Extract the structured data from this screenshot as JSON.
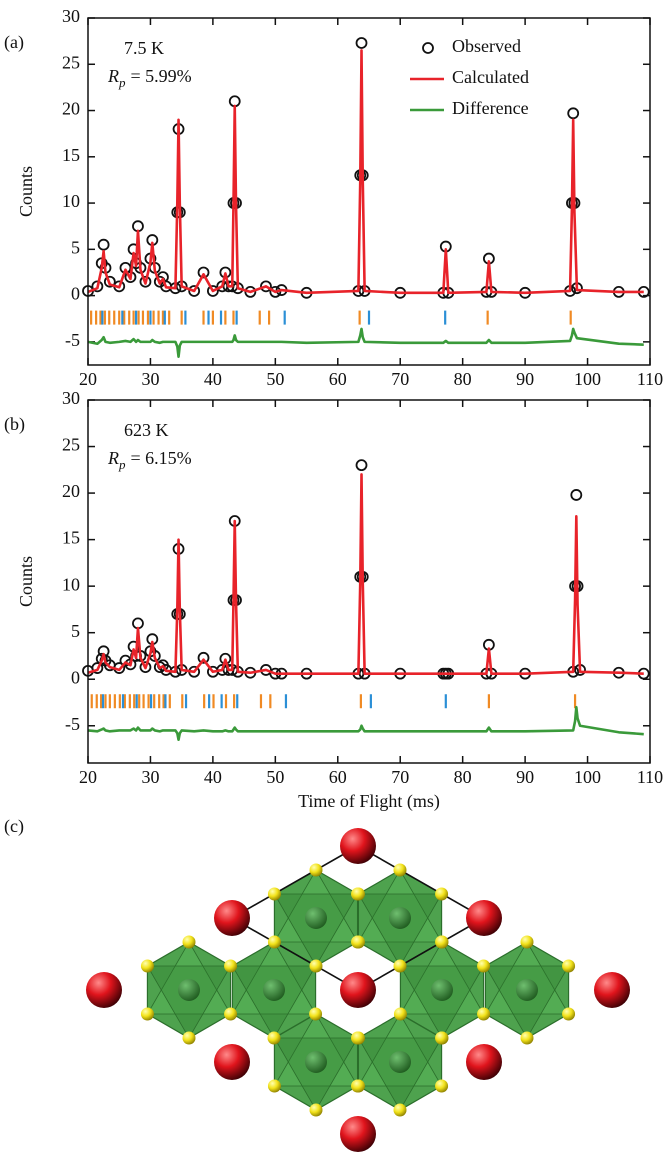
{
  "chart_data": [
    {
      "type": "line",
      "panel_label": "(a)",
      "temperature": "7.5 K",
      "rp_symbol": "R",
      "rp_subscript": "p",
      "rp_value": "= 5.99%",
      "ylabel": "Counts",
      "legend": "upper right",
      "xlim": [
        20,
        110
      ],
      "xticks": [
        20,
        30,
        40,
        50,
        60,
        70,
        80,
        90,
        100,
        110
      ],
      "ylim": [
        -7.5,
        30
      ],
      "yticks": [
        -5,
        0,
        5,
        10,
        15,
        20,
        25,
        30
      ],
      "x": [
        20,
        21.5,
        22.2,
        22.5,
        22.8,
        23.5,
        25,
        26,
        26.8,
        27.3,
        27.7,
        28,
        28.4,
        29.2,
        30,
        30.3,
        30.7,
        31.5,
        32,
        32.5,
        34,
        34.3,
        34.5,
        34.7,
        35,
        37,
        38.5,
        40,
        41.5,
        42,
        42.5,
        43.1,
        43.3,
        43.5,
        43.7,
        44,
        46,
        48.5,
        50,
        51,
        55,
        63.3,
        63.6,
        63.8,
        64,
        64.3,
        70,
        76.9,
        77.3,
        77.7,
        83.8,
        84.2,
        84.6,
        90,
        97.2,
        97.5,
        97.7,
        97.9,
        98.3,
        105,
        109
      ],
      "series": [
        {
          "name": "Observed",
          "style": "markers",
          "color": "#111111",
          "values": [
            0.5,
            1,
            3.5,
            5.5,
            3,
            1.5,
            1,
            3,
            2,
            5,
            3.5,
            7.5,
            3,
            1.5,
            4,
            6,
            3,
            1.5,
            2,
            1,
            0.8,
            9,
            18,
            9,
            1,
            0.5,
            2.5,
            0.5,
            1,
            2.5,
            1,
            1,
            10,
            21,
            10,
            0.8,
            0.4,
            1,
            0.4,
            0.6,
            0.3,
            0.5,
            13,
            27.3,
            13,
            0.5,
            0.3,
            0.3,
            5.3,
            0.3,
            0.4,
            4,
            0.4,
            0.3,
            0.5,
            10,
            19.7,
            10,
            0.8,
            0.4,
            0.4
          ]
        },
        {
          "name": "Calculated",
          "style": "line",
          "color": "#e8232a",
          "values": [
            0.4,
            0.8,
            3,
            4.8,
            2.5,
            1.2,
            0.9,
            2.8,
            1.8,
            4.6,
            3.2,
            7,
            2.8,
            1.3,
            3.6,
            5.7,
            2.7,
            1.3,
            1.8,
            0.9,
            0.8,
            10,
            19,
            10,
            1,
            0.5,
            2.3,
            0.5,
            1,
            2.4,
            1,
            1,
            10,
            20.5,
            10,
            0.8,
            0.4,
            1,
            0.4,
            0.6,
            0.3,
            0.5,
            12.5,
            26.5,
            12.5,
            0.5,
            0.3,
            0.3,
            5,
            0.3,
            0.4,
            3.7,
            0.4,
            0.3,
            0.5,
            9.5,
            19,
            9,
            0.6,
            0.4,
            0.4
          ]
        },
        {
          "name": "Difference",
          "style": "line",
          "color": "#3a9a3a",
          "values": [
            -5,
            -5.2,
            -4.8,
            -4.5,
            -5,
            -5.1,
            -5,
            -4.9,
            -5,
            -4.7,
            -5,
            -4.8,
            -5,
            -5,
            -5,
            -4.8,
            -5,
            -5.1,
            -5,
            -5,
            -5,
            -5.5,
            -6.6,
            -5.4,
            -5,
            -5,
            -5,
            -5,
            -5,
            -5,
            -5,
            -5,
            -4.8,
            -4.3,
            -4.8,
            -5,
            -5,
            -5,
            -5,
            -5,
            -5.1,
            -5,
            -4.3,
            -3.6,
            -4.5,
            -5,
            -5.1,
            -5.1,
            -4.9,
            -5.1,
            -5.1,
            -4.8,
            -5.1,
            -5.1,
            -4.9,
            -4.3,
            -3.6,
            -4,
            -4.6,
            -5.2,
            -5.3
          ]
        }
      ],
      "reflections": [
        {
          "color": "#f08a24",
          "positions": [
            20.5,
            21.3,
            22,
            22.7,
            23.4,
            24.2,
            25,
            25.8,
            26.6,
            27.3,
            28.1,
            28.8,
            29.6,
            30.5,
            31.3,
            32,
            33,
            35,
            38.5,
            40,
            42,
            43.3,
            47.5,
            49,
            63.5,
            84,
            97.3
          ]
        },
        {
          "color": "#2b8fd6",
          "positions": [
            22.3,
            25.5,
            27.7,
            30,
            32.3,
            35.6,
            39.3,
            41.3,
            43.8,
            51.5,
            65,
            77.2
          ]
        }
      ]
    },
    {
      "type": "line",
      "panel_label": "(b)",
      "temperature": "623 K",
      "rp_symbol": "R",
      "rp_subscript": "p",
      "rp_value": "= 6.15%",
      "ylabel": "Counts",
      "xlabel": "Time of Flight (ms)",
      "xlim": [
        20,
        110
      ],
      "xticks": [
        20,
        30,
        40,
        50,
        60,
        70,
        80,
        90,
        100,
        110
      ],
      "ylim": [
        -9,
        30
      ],
      "yticks": [
        -5,
        0,
        5,
        10,
        15,
        20,
        25,
        30
      ],
      "x": [
        20,
        21.5,
        22.2,
        22.5,
        22.8,
        23.5,
        25,
        26,
        26.8,
        27.3,
        27.7,
        28,
        28.4,
        29.2,
        30,
        30.3,
        30.7,
        31.5,
        32,
        32.5,
        34,
        34.3,
        34.5,
        34.7,
        35,
        37,
        38.5,
        40,
        41.5,
        42,
        42.5,
        43.1,
        43.3,
        43.5,
        43.7,
        44,
        46,
        48.5,
        50,
        51,
        55,
        63.3,
        63.6,
        63.8,
        64,
        64.3,
        70,
        76.9,
        77.3,
        77.7,
        83.8,
        84.2,
        84.6,
        90,
        97.7,
        98,
        98.2,
        98.4,
        98.8,
        105,
        109
      ],
      "series": [
        {
          "style": "markers",
          "color": "#111111",
          "values": [
            0.9,
            1.2,
            2.2,
            3,
            2,
            1.5,
            1.2,
            2,
            1.6,
            3.5,
            2.5,
            6,
            2.5,
            1.3,
            3,
            4.3,
            2.5,
            1.3,
            1.5,
            1,
            0.8,
            7,
            14,
            7,
            1,
            0.8,
            2.3,
            0.8,
            1,
            2.2,
            1,
            1,
            8.5,
            17,
            8.5,
            0.8,
            0.7,
            1,
            0.6,
            0.6,
            0.6,
            0.6,
            11,
            23,
            11,
            0.6,
            0.6,
            0.6,
            0.6,
            0.6,
            0.6,
            3.7,
            0.6,
            0.6,
            0.8,
            10,
            19.8,
            10,
            1,
            0.7,
            0.6
          ]
        },
        {
          "style": "line",
          "color": "#e8232a",
          "values": [
            0.7,
            1,
            2,
            2.7,
            1.8,
            1.3,
            1,
            1.8,
            1.5,
            3.2,
            2.3,
            5.5,
            2.3,
            1.2,
            2.8,
            4,
            2.3,
            1.2,
            1.4,
            0.9,
            0.8,
            7.5,
            15,
            7.5,
            1,
            0.8,
            2.1,
            0.8,
            1,
            2.1,
            1,
            1,
            8.5,
            17,
            8.5,
            0.8,
            0.7,
            1,
            0.6,
            0.6,
            0.6,
            0.6,
            10.5,
            22,
            10.5,
            0.6,
            0.6,
            0.6,
            0.6,
            0.6,
            0.6,
            3.3,
            0.6,
            0.6,
            0.8,
            8.5,
            17.5,
            8,
            0.8,
            0.7,
            0.6
          ]
        },
        {
          "style": "line",
          "color": "#3a9a3a",
          "values": [
            -5.5,
            -5.6,
            -5.4,
            -5.3,
            -5.5,
            -5.6,
            -5.5,
            -5.5,
            -5.5,
            -5.3,
            -5.5,
            -5.2,
            -5.5,
            -5.5,
            -5.5,
            -5.3,
            -5.5,
            -5.6,
            -5.5,
            -5.5,
            -5.5,
            -5.8,
            -6.5,
            -5.8,
            -5.5,
            -5.6,
            -5.5,
            -5.6,
            -5.6,
            -5.5,
            -5.6,
            -5.6,
            -5.4,
            -5.2,
            -5.4,
            -5.6,
            -5.6,
            -5.6,
            -5.6,
            -5.6,
            -5.6,
            -5.6,
            -5.4,
            -5,
            -5.3,
            -5.6,
            -5.6,
            -5.6,
            -5.6,
            -5.6,
            -5.6,
            -5.2,
            -5.6,
            -5.6,
            -5.5,
            -4.5,
            -3,
            -4.2,
            -5,
            -5.7,
            -5.9
          ]
        }
      ],
      "reflections": [
        {
          "color": "#f08a24",
          "positions": [
            20.6,
            21.4,
            22.1,
            22.8,
            23.5,
            24.3,
            25.1,
            25.9,
            26.7,
            27.4,
            28.2,
            28.9,
            29.7,
            30.6,
            31.4,
            32.1,
            33.1,
            35.1,
            38.6,
            40.1,
            42.1,
            43.4,
            47.7,
            49.2,
            63.7,
            84.2,
            98
          ]
        },
        {
          "color": "#2b8fd6",
          "positions": [
            22.4,
            25.6,
            27.8,
            30.1,
            32.4,
            35.7,
            39.4,
            41.4,
            43.9,
            51.7,
            65.3,
            77.3
          ]
        }
      ]
    }
  ],
  "panel_c": {
    "label": "(c)"
  }
}
